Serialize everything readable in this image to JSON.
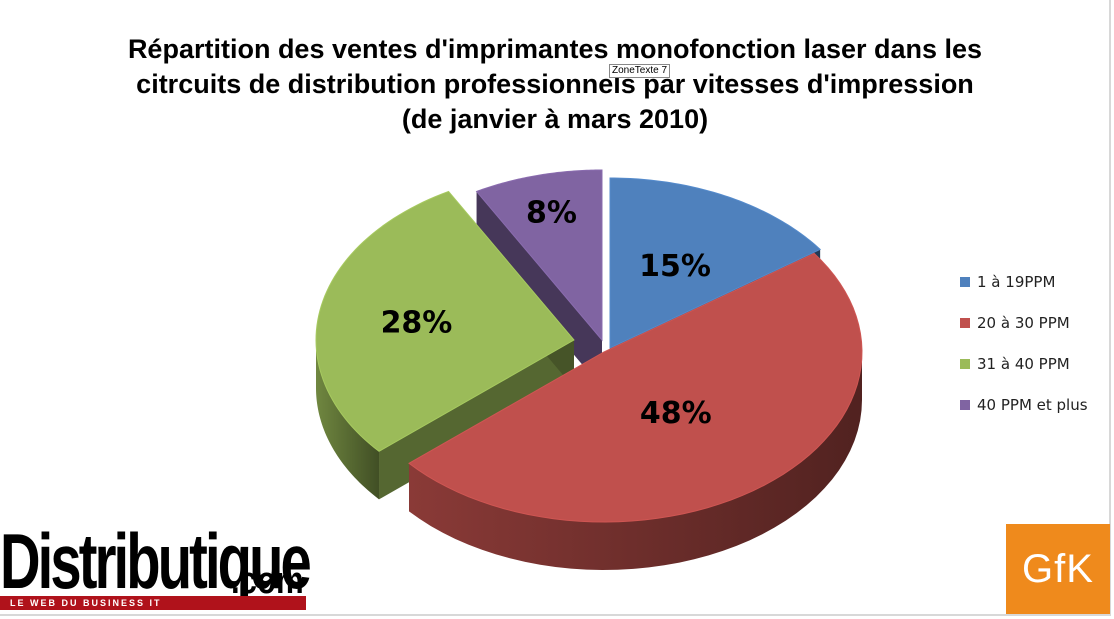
{
  "chart_data": {
    "type": "pie",
    "title_lines": [
      "Répartition des ventes d'imprimantes monofonction laser dans les",
      "citrcuits de distribution professionnels par vitesses d'impression",
      "(de janvier à mars 2010)"
    ],
    "categories": [
      "1 à 19PPM",
      "20 à 30 PPM",
      "31 à 40 PPM",
      "40 PPM et plus"
    ],
    "values": [
      15,
      48,
      28,
      8
    ],
    "value_labels": [
      "15%",
      "48%",
      "28%",
      "8%"
    ],
    "colors": [
      "#4f81bd",
      "#c0504d",
      "#9bbb59",
      "#8064a2"
    ],
    "style": "3d-exploded",
    "legend_position": "right"
  },
  "overlay_tag": "ZoneTexte 7",
  "logos": {
    "distributique": {
      "word": "Distributique",
      "suffix": ".com",
      "tagline": "LE WEB DU BUSINESS IT"
    },
    "gfk": "GfK"
  }
}
